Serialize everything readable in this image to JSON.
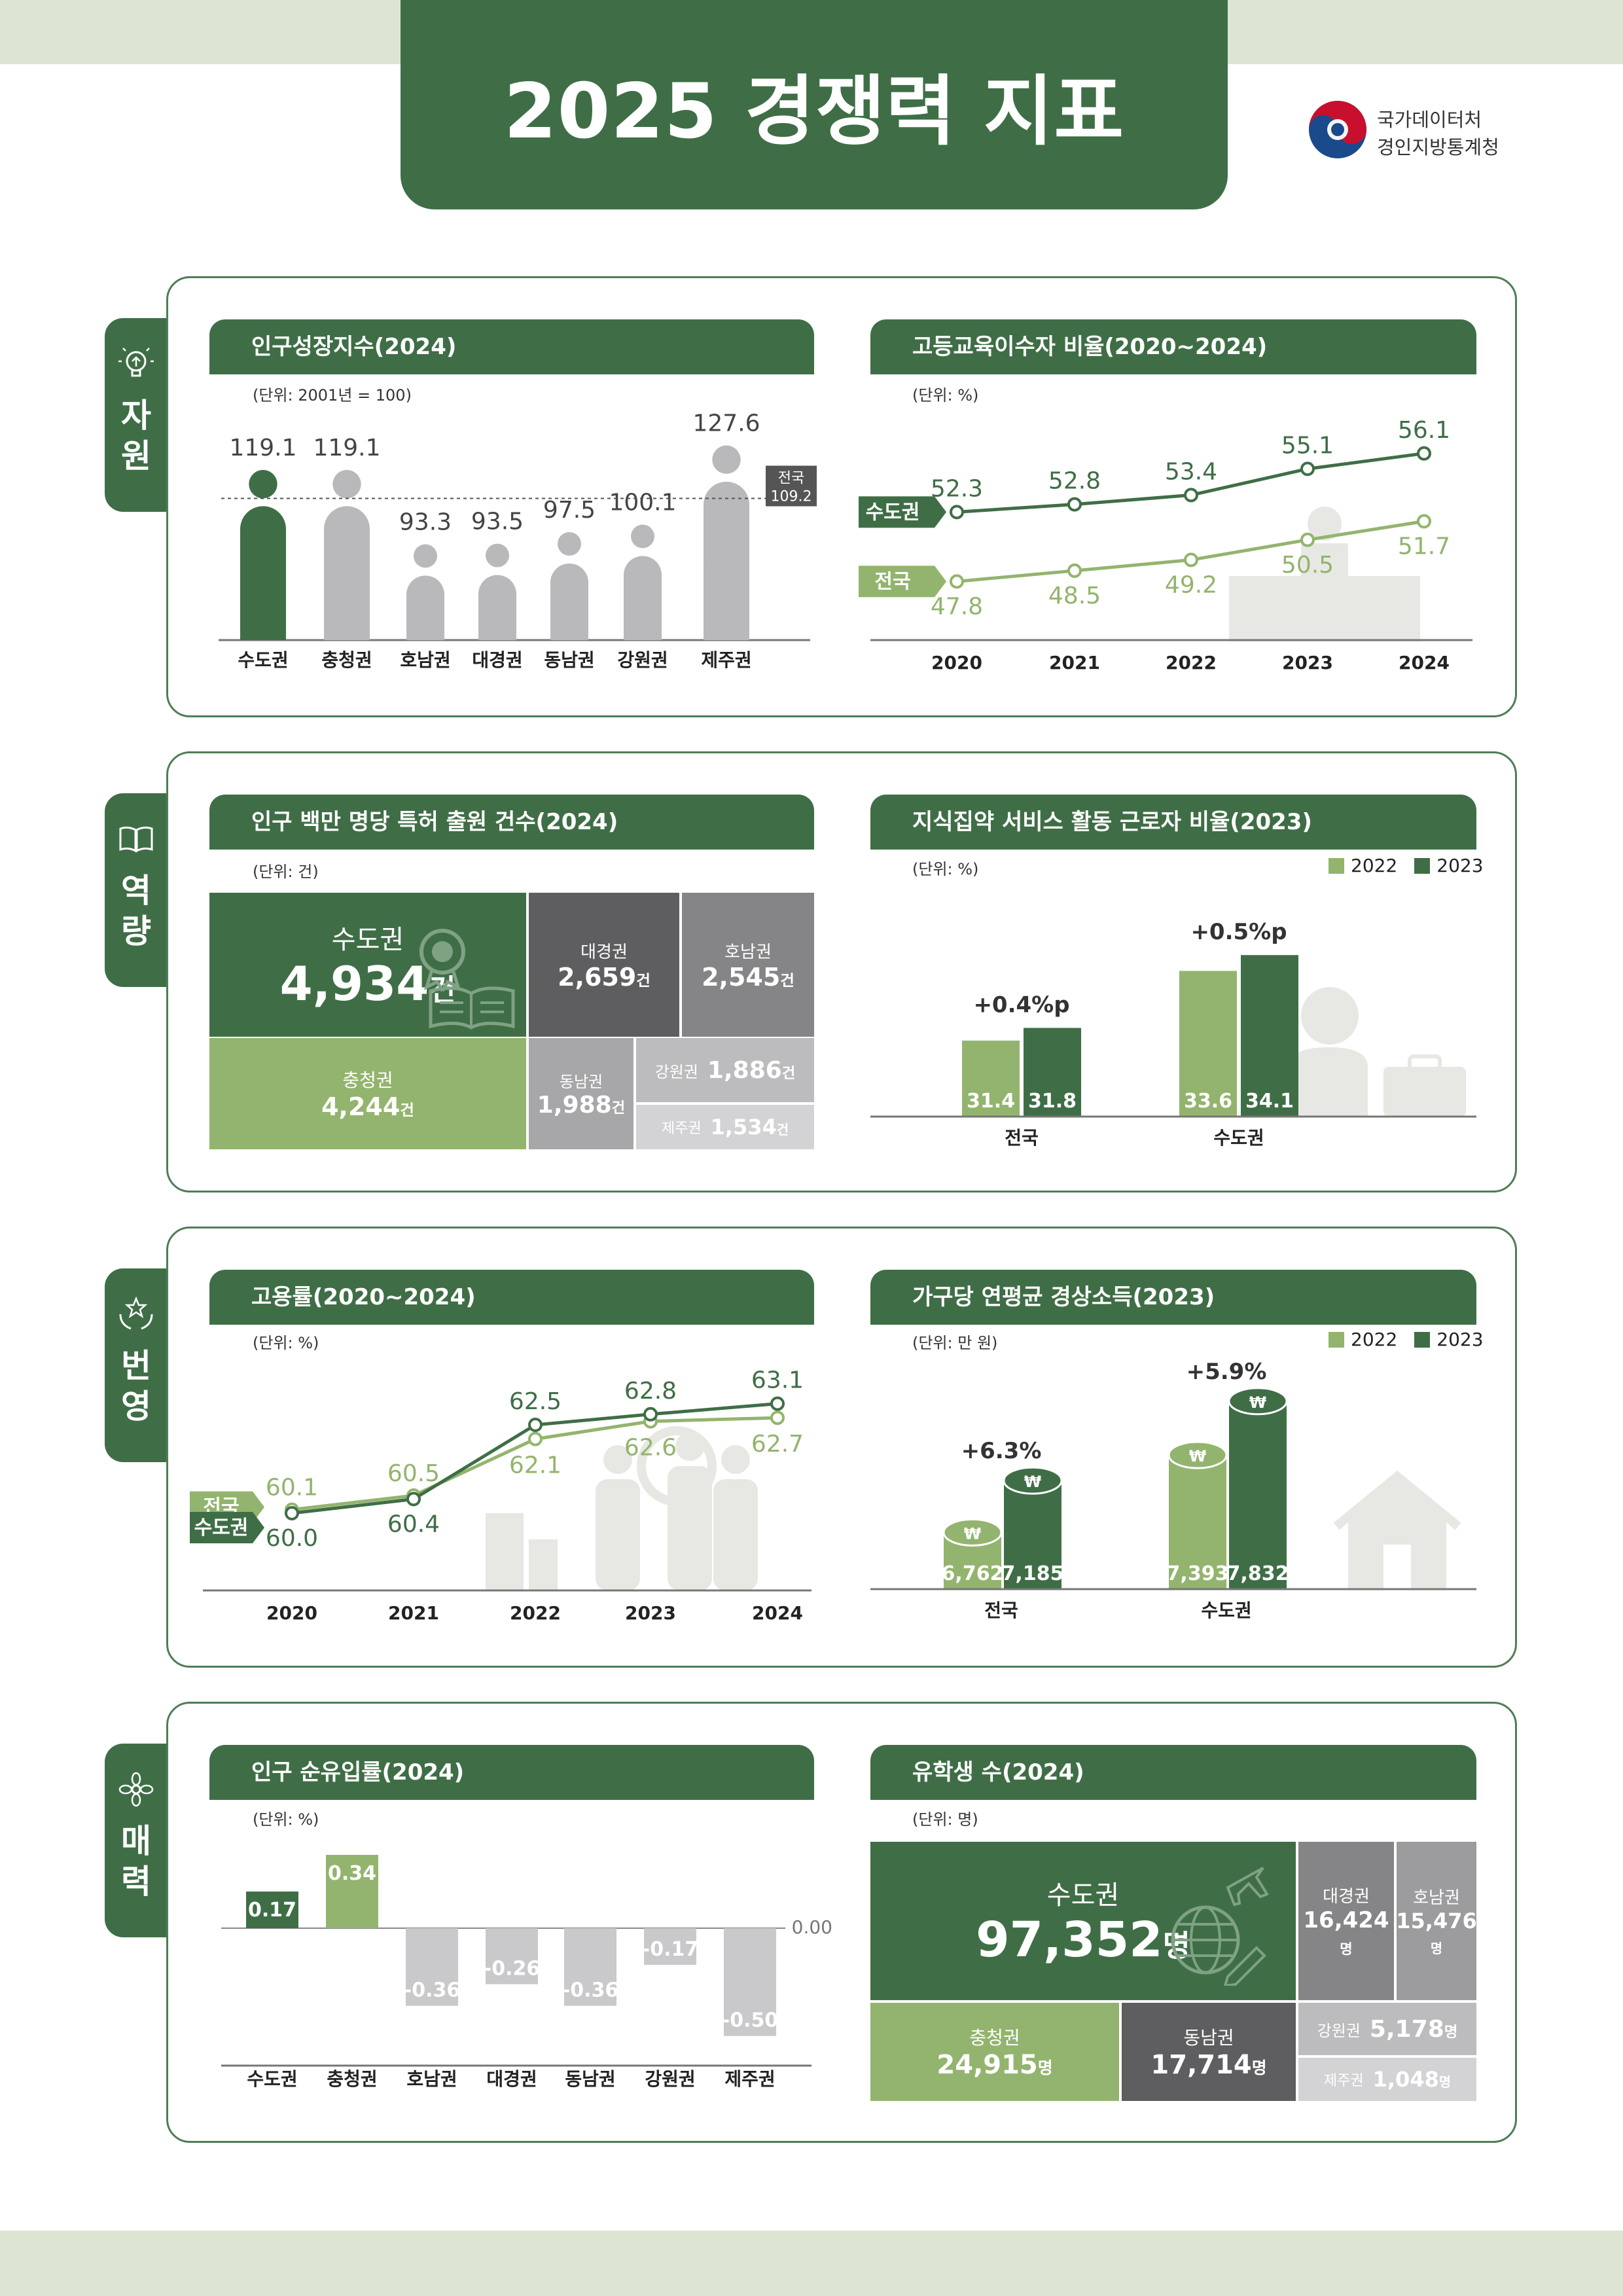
{
  "header": {
    "title": "2025 경쟁력 지표",
    "org_line1": "국가데이터처",
    "org_line2": "경인지방통계청"
  },
  "colors": {
    "dark_green": "#3f6e46",
    "light_green": "#93b46e",
    "gray": "#b9b9bb",
    "dark_gray": "#5e5e60",
    "mid_gray": "#858587",
    "light_gray": "#c9c9cb"
  },
  "sections": [
    {
      "label": "자원",
      "icon": "lightbulb-icon"
    },
    {
      "label": "역량",
      "icon": "book-icon"
    },
    {
      "label": "번영",
      "icon": "hands-star-icon"
    },
    {
      "label": "매력",
      "icon": "flower-icon"
    }
  ],
  "panels": {
    "pop_growth": {
      "title": "인구성장지수(2024)",
      "unit": "(단위: 2001년 = 100)",
      "ref_label_1": "전국",
      "ref_label_2": "109.2"
    },
    "higher_edu": {
      "title": "고등교육이수자 비율(2020~2024)",
      "unit": "(단위: %)"
    },
    "patent": {
      "title": "인구 백만 명당 특허 출원 건수(2024)",
      "unit": "(단위: 건)"
    },
    "knowledge": {
      "title": "지식집약 서비스 활동 근로자 비율(2023)",
      "unit": "(단위: %)",
      "legend_2022": "2022",
      "legend_2023": "2023"
    },
    "employment": {
      "title": "고용률(2020~2024)",
      "unit": "(단위: %)"
    },
    "income": {
      "title": "가구당 연평균 경상소득(2023)",
      "unit": "(단위: 만 원)",
      "legend_2022": "2022",
      "legend_2023": "2023"
    },
    "net_inflow": {
      "title": "인구 순유입률(2024)",
      "unit": "(단위: %)"
    },
    "students": {
      "title": "유학생 수(2024)",
      "unit": "(단위: 명)"
    }
  },
  "chart_data": [
    {
      "id": "pop_growth",
      "type": "bar",
      "title": "인구성장지수(2024)",
      "categories": [
        "수도권",
        "충청권",
        "호남권",
        "대경권",
        "동남권",
        "강원권",
        "제주권"
      ],
      "values": [
        119.1,
        119.1,
        93.3,
        93.5,
        97.5,
        100.1,
        127.6
      ],
      "labels": [
        "119.1",
        "119.1",
        "93.3",
        "93.5",
        "97.5",
        "100.1",
        "127.6"
      ],
      "reference": {
        "name": "전국",
        "value": 109.2
      },
      "ylim": [
        60,
        135
      ]
    },
    {
      "id": "higher_edu",
      "type": "line",
      "title": "고등교육이수자 비율(2020~2024)",
      "x": [
        "2020",
        "2021",
        "2022",
        "2023",
        "2024"
      ],
      "series": [
        {
          "name": "수도권",
          "values": [
            52.3,
            52.8,
            53.4,
            55.1,
            56.1
          ],
          "labels": [
            "52.3",
            "52.8",
            "53.4",
            "55.1",
            "56.1"
          ]
        },
        {
          "name": "전국",
          "values": [
            47.8,
            48.5,
            49.2,
            50.5,
            51.7
          ],
          "labels": [
            "47.8",
            "48.5",
            "49.2",
            "50.5",
            "51.7"
          ]
        }
      ],
      "ylim": [
        44,
        58
      ]
    },
    {
      "id": "patent",
      "type": "table",
      "title": "인구 백만 명당 특허 출원 건수(2024)",
      "unit_suffix": "건",
      "regions": [
        "수도권",
        "충청권",
        "대경권",
        "호남권",
        "동남권",
        "강원권",
        "제주권"
      ],
      "values": [
        4934,
        4244,
        2659,
        2545,
        1988,
        1886,
        1534
      ],
      "labels": [
        "4,934",
        "4,244",
        "2,659",
        "2,545",
        "1,988",
        "1,886",
        "1,534"
      ]
    },
    {
      "id": "knowledge",
      "type": "bar",
      "title": "지식집약 서비스 활동 근로자 비율(2023)",
      "categories": [
        "전국",
        "수도권"
      ],
      "series": [
        {
          "name": "2022",
          "values": [
            31.4,
            33.6
          ],
          "labels": [
            "31.4",
            "33.6"
          ]
        },
        {
          "name": "2023",
          "values": [
            31.8,
            34.1
          ],
          "labels": [
            "31.8",
            "34.1"
          ]
        }
      ],
      "annotations": [
        "+0.4%p",
        "+0.5%p"
      ],
      "ylim": [
        29,
        35.2
      ]
    },
    {
      "id": "employment",
      "type": "line",
      "title": "고용률(2020~2024)",
      "x": [
        "2020",
        "2021",
        "2022",
        "2023",
        "2024"
      ],
      "series": [
        {
          "name": "전국",
          "values": [
            60.1,
            60.5,
            62.1,
            62.6,
            62.7
          ],
          "labels": [
            "60.1",
            "60.5",
            "62.1",
            "62.6",
            "62.7"
          ]
        },
        {
          "name": "수도권",
          "values": [
            60.0,
            60.4,
            62.5,
            62.8,
            63.1
          ],
          "labels": [
            "60.0",
            "60.4",
            "62.5",
            "62.8",
            "63.1"
          ]
        }
      ],
      "ylim": [
        59,
        64
      ]
    },
    {
      "id": "income",
      "type": "bar",
      "title": "가구당 연평균 경상소득(2023)",
      "categories": [
        "전국",
        "수도권"
      ],
      "series": [
        {
          "name": "2022",
          "values": [
            6762,
            7393
          ],
          "labels": [
            "6,762",
            "7,393"
          ]
        },
        {
          "name": "2023",
          "values": [
            7185,
            7832
          ],
          "labels": [
            "7,185",
            "7,832"
          ]
        }
      ],
      "annotations": [
        "+6.3%",
        "+5.9%"
      ],
      "coin_symbol": "₩",
      "ylim": [
        6300,
        7900
      ]
    },
    {
      "id": "net_inflow",
      "type": "bar",
      "title": "인구 순유입률(2024)",
      "categories": [
        "수도권",
        "충청권",
        "호남권",
        "대경권",
        "동남권",
        "강원권",
        "제주권"
      ],
      "values": [
        0.17,
        0.34,
        -0.36,
        -0.26,
        -0.36,
        -0.17,
        -0.5
      ],
      "labels": [
        "0.17",
        "0.34",
        "-0.36",
        "-0.26",
        "-0.36",
        "-0.17",
        "-0.50"
      ],
      "zero_label": "0.00",
      "ylim": [
        -0.6,
        0.4
      ]
    },
    {
      "id": "students",
      "type": "table",
      "title": "유학생 수(2024)",
      "unit_suffix": "명",
      "regions": [
        "수도권",
        "충청권",
        "동남권",
        "대경권",
        "호남권",
        "강원권",
        "제주권"
      ],
      "values": [
        97352,
        24915,
        17714,
        16424,
        15476,
        5178,
        1048
      ],
      "labels": [
        "97,352",
        "24,915",
        "17,714",
        "16,424",
        "15,476",
        "5,178",
        "1,048"
      ]
    }
  ]
}
